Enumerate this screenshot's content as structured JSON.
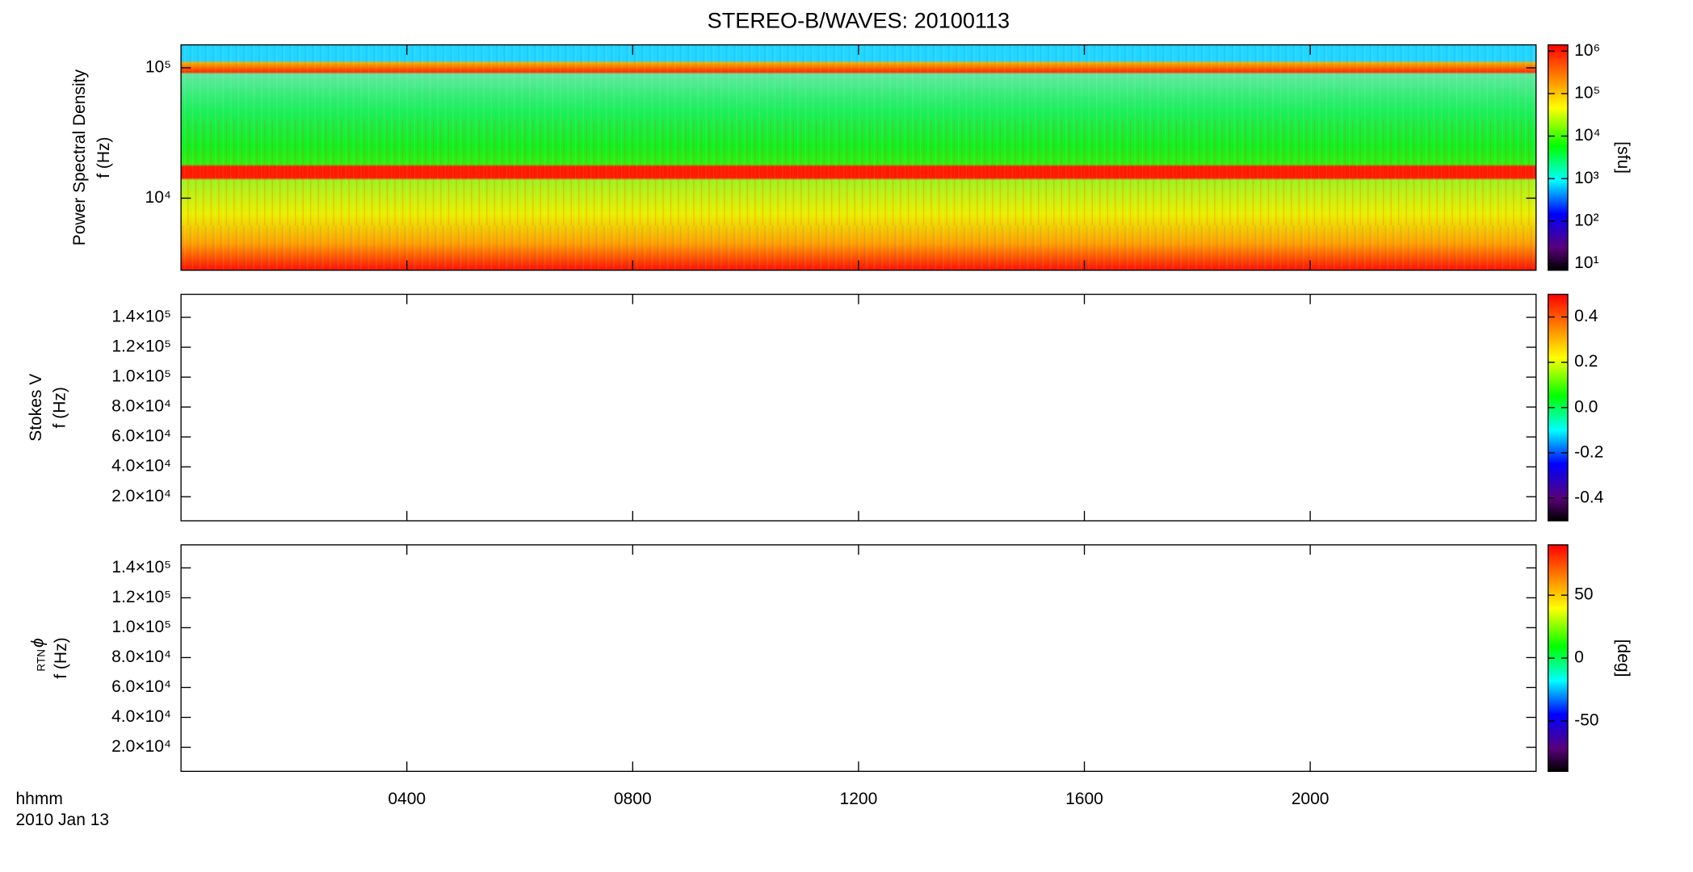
{
  "chart_data": [
    {
      "type": "spectrogram",
      "title": "STEREO-B/WAVES: 20100113",
      "ylabel": [
        "Power Spectral Density",
        "f (Hz)"
      ],
      "ylog": true,
      "ylim": [
        2800,
        150000
      ],
      "yticks": [
        {
          "value": 10000,
          "label": "10⁴"
        },
        {
          "value": 100000,
          "label": "10⁵"
        }
      ],
      "zlog": true,
      "zlim": [
        7,
        1400000
      ],
      "zticks": [
        {
          "value": 10,
          "label": "10¹"
        },
        {
          "value": 100,
          "label": "10²"
        },
        {
          "value": 1000,
          "label": "10³"
        },
        {
          "value": 10000,
          "label": "10⁴"
        },
        {
          "value": 100000,
          "label": "10⁵"
        },
        {
          "value": 1000000,
          "label": "10⁶"
        }
      ],
      "zlabel": "[sfu]"
    },
    {
      "type": "spectrogram",
      "ylabel": [
        "Stokes V",
        "f (Hz)"
      ],
      "ylog": false,
      "ylim": [
        3900,
        155400
      ],
      "yticks": [
        {
          "value": 20000,
          "label": "2.0×10⁴"
        },
        {
          "value": 40000,
          "label": "4.0×10⁴"
        },
        {
          "value": 60000,
          "label": "6.0×10⁴"
        },
        {
          "value": 80000,
          "label": "8.0×10⁴"
        },
        {
          "value": 100000,
          "label": "1.0×10⁵"
        },
        {
          "value": 120000,
          "label": "1.2×10⁵"
        },
        {
          "value": 140000,
          "label": "1.4×10⁵"
        }
      ],
      "zlog": false,
      "zlim": [
        -0.5,
        0.5
      ],
      "zticks": [
        -0.4,
        -0.2,
        {
          "value": 0,
          "label": "0.0"
        },
        0.2,
        0.4
      ]
    },
    {
      "type": "spectrogram",
      "ylabel": [
        "ϕ",
        "RTN",
        "f (Hz)"
      ],
      "ylog": false,
      "ylim": [
        3900,
        155400
      ],
      "yticks": [
        {
          "value": 20000,
          "label": "2.0×10⁴"
        },
        {
          "value": 40000,
          "label": "4.0×10⁴"
        },
        {
          "value": 60000,
          "label": "6.0×10⁴"
        },
        {
          "value": 80000,
          "label": "8.0×10⁴"
        },
        {
          "value": 100000,
          "label": "1.0×10⁵"
        },
        {
          "value": 120000,
          "label": "1.2×10⁵"
        },
        {
          "value": 140000,
          "label": "1.4×10⁵"
        }
      ],
      "zlog": false,
      "zlim": [
        -90,
        90
      ],
      "zticks": [
        -50,
        0,
        50
      ],
      "zlabel": "[deg]",
      "xlabel": "hhmm",
      "date": "2010 Jan 13",
      "xlim": [
        0,
        2400
      ],
      "xticks": [
        {
          "value": 400,
          "label": "0400"
        },
        {
          "value": 800,
          "label": "0800"
        },
        {
          "value": 1200,
          "label": "1200"
        },
        {
          "value": 1600,
          "label": "1600"
        },
        {
          "value": 2000,
          "label": "2000"
        }
      ]
    }
  ]
}
